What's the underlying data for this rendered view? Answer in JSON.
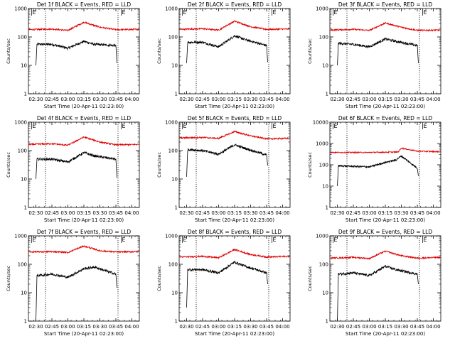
{
  "colors": {
    "events": "#000000",
    "lld": "#e00000",
    "axes": "#000000"
  },
  "chart_data": [
    {
      "type": "line",
      "title": "Det 1f BLACK = Events, RED = LLD",
      "xlabel": "Start Time (20-Apr-11 02:23:00)",
      "ylabel": "Counts/sec",
      "yscale": "log",
      "xlim": [
        "02:23",
        "04:07"
      ],
      "ylim": [
        1,
        1000
      ],
      "ytick_labels": [
        "1",
        "10",
        "100",
        "1000"
      ],
      "xtick_labels": [
        "02:30",
        "02:45",
        "03:00",
        "03:15",
        "03:30",
        "03:45",
        "04:00"
      ],
      "markers": [
        {
          "label": "E",
          "time": "02:26"
        },
        {
          "label": "E",
          "time": "03:50"
        }
      ],
      "vlines": [
        "02:39",
        "03:47"
      ],
      "series": [
        {
          "name": "Events",
          "x": [
            "02:30",
            "02:31",
            "02:45",
            "03:00",
            "03:15",
            "03:25",
            "03:45",
            "03:46"
          ],
          "y": [
            10,
            55,
            55,
            40,
            70,
            55,
            50,
            12
          ]
        },
        {
          "name": "LLD",
          "x": [
            "02:23",
            "02:45",
            "03:00",
            "03:15",
            "03:30",
            "03:45",
            "04:07"
          ],
          "y": [
            180,
            190,
            170,
            330,
            220,
            180,
            185
          ]
        }
      ]
    },
    {
      "type": "line",
      "title": "Det 2f BLACK = Events, RED = LLD",
      "xlabel": "Start Time (20-Apr-11 02:23:00)",
      "ylabel": "Counts/sec",
      "yscale": "log",
      "xlim": [
        "02:23",
        "04:07"
      ],
      "ylim": [
        1,
        1000
      ],
      "ytick_labels": [
        "1",
        "10",
        "100",
        "1000"
      ],
      "xtick_labels": [
        "02:30",
        "02:45",
        "03:00",
        "03:15",
        "03:30",
        "03:45",
        "04:00"
      ],
      "markers": [
        {
          "label": "E",
          "time": "02:26"
        },
        {
          "label": "E",
          "time": "03:50"
        }
      ],
      "vlines": [
        "02:39",
        "03:47"
      ],
      "series": [
        {
          "name": "Events",
          "x": [
            "02:30",
            "02:31",
            "02:45",
            "03:00",
            "03:15",
            "03:25",
            "03:45",
            "03:46"
          ],
          "y": [
            12,
            65,
            65,
            45,
            110,
            80,
            50,
            13
          ]
        },
        {
          "name": "LLD",
          "x": [
            "02:23",
            "02:45",
            "03:00",
            "03:15",
            "03:30",
            "03:45",
            "04:07"
          ],
          "y": [
            185,
            195,
            175,
            360,
            230,
            185,
            190
          ]
        }
      ]
    },
    {
      "type": "line",
      "title": "Det 3f BLACK = Events, RED = LLD",
      "xlabel": "Start Time (20-Apr-11 02:23:00)",
      "ylabel": "Counts/sec",
      "yscale": "log",
      "xlim": [
        "02:23",
        "04:07"
      ],
      "ylim": [
        1,
        1000
      ],
      "ytick_labels": [
        "1",
        "10",
        "100",
        "1000"
      ],
      "xtick_labels": [
        "02:30",
        "02:45",
        "03:00",
        "03:15",
        "03:30",
        "03:45",
        "04:00"
      ],
      "markers": [
        {
          "label": "E",
          "time": "02:26"
        },
        {
          "label": "E",
          "time": "03:50"
        }
      ],
      "vlines": [
        "02:39",
        "03:47"
      ],
      "series": [
        {
          "name": "Events",
          "x": [
            "02:30",
            "02:31",
            "02:45",
            "03:00",
            "03:15",
            "03:25",
            "03:45",
            "03:46"
          ],
          "y": [
            10,
            60,
            55,
            45,
            85,
            70,
            50,
            12
          ]
        },
        {
          "name": "LLD",
          "x": [
            "02:23",
            "02:45",
            "03:00",
            "03:15",
            "03:30",
            "03:45",
            "04:07"
          ],
          "y": [
            175,
            185,
            170,
            310,
            220,
            170,
            175
          ]
        }
      ]
    },
    {
      "type": "line",
      "title": "Det 4f BLACK = Events, RED = LLD",
      "xlabel": "Start Time (20-Apr-11 02:23:00)",
      "ylabel": "Counts/sec",
      "yscale": "log",
      "xlim": [
        "02:23",
        "04:07"
      ],
      "ylim": [
        1,
        1000
      ],
      "ytick_labels": [
        "1",
        "10",
        "100",
        "1000"
      ],
      "xtick_labels": [
        "02:30",
        "02:45",
        "03:00",
        "03:15",
        "03:30",
        "03:45",
        "04:00"
      ],
      "markers": [
        {
          "label": "E",
          "time": "02:26"
        },
        {
          "label": "E",
          "time": "03:50"
        }
      ],
      "vlines": [
        "02:39",
        "03:47"
      ],
      "series": [
        {
          "name": "Events",
          "x": [
            "02:30",
            "02:31",
            "02:45",
            "03:00",
            "03:15",
            "03:25",
            "03:45",
            "03:46"
          ],
          "y": [
            10,
            50,
            50,
            40,
            85,
            65,
            50,
            11
          ]
        },
        {
          "name": "LLD",
          "x": [
            "02:23",
            "02:45",
            "03:00",
            "03:15",
            "03:30",
            "03:45",
            "04:07"
          ],
          "y": [
            165,
            175,
            155,
            300,
            200,
            160,
            165
          ]
        }
      ]
    },
    {
      "type": "line",
      "title": "Det 5f BLACK = Events, RED = LLD",
      "xlabel": "Start Time (20-Apr-11 02:23:00)",
      "ylabel": "Counts/sec",
      "yscale": "log",
      "xlim": [
        "02:23",
        "04:07"
      ],
      "ylim": [
        1,
        1000
      ],
      "ytick_labels": [
        "1",
        "10",
        "100",
        "1000"
      ],
      "xtick_labels": [
        "02:30",
        "02:45",
        "03:00",
        "03:15",
        "03:30",
        "03:45",
        "04:00"
      ],
      "markers": [
        {
          "label": "E",
          "time": "02:26"
        },
        {
          "label": "E",
          "time": "03:50"
        }
      ],
      "vlines": [
        "02:39",
        "03:47"
      ],
      "series": [
        {
          "name": "Events",
          "x": [
            "02:30",
            "02:31",
            "02:45",
            "03:00",
            "03:15",
            "03:25",
            "03:45",
            "03:46"
          ],
          "y": [
            12,
            110,
            100,
            75,
            160,
            120,
            70,
            30
          ]
        },
        {
          "name": "LLD",
          "x": [
            "02:23",
            "02:45",
            "03:00",
            "03:15",
            "03:30",
            "03:45",
            "04:07"
          ],
          "y": [
            280,
            290,
            270,
            470,
            330,
            260,
            270
          ]
        }
      ]
    },
    {
      "type": "line",
      "title": "Det 6f BLACK = Events, RED = LLD",
      "xlabel": "Start Time (20-Apr-11 02:23:00)",
      "ylabel": "Counts/sec",
      "yscale": "log",
      "xlim": [
        "02:23",
        "04:07"
      ],
      "ylim": [
        1,
        10000
      ],
      "ytick_labels": [
        "1",
        "10",
        "100",
        "1000",
        "10000"
      ],
      "xtick_labels": [
        "02:30",
        "02:45",
        "03:00",
        "03:15",
        "03:30",
        "03:45",
        "04:00"
      ],
      "markers": [
        {
          "label": "E",
          "time": "02:26"
        },
        {
          "label": "E",
          "time": "03:50"
        }
      ],
      "vlines": [
        "02:39",
        "03:47"
      ],
      "series": [
        {
          "name": "Events",
          "x": [
            "02:30",
            "02:31",
            "02:45",
            "03:00",
            "03:15",
            "03:25",
            "03:30",
            "03:45",
            "03:46"
          ],
          "y": [
            10,
            90,
            85,
            80,
            130,
            170,
            260,
            70,
            30
          ]
        },
        {
          "name": "LLD",
          "x": [
            "02:23",
            "02:45",
            "03:00",
            "03:15",
            "03:27",
            "03:30",
            "03:45",
            "04:07"
          ],
          "y": [
            380,
            380,
            380,
            390,
            400,
            600,
            440,
            410
          ]
        }
      ]
    },
    {
      "type": "line",
      "title": "Det 7f BLACK = Events, RED = LLD",
      "xlabel": "Start Time (20-Apr-11 02:23:00)",
      "ylabel": "Counts/sec",
      "yscale": "log",
      "xlim": [
        "02:23",
        "04:07"
      ],
      "ylim": [
        1,
        1000
      ],
      "ytick_labels": [
        "1",
        "10",
        "100",
        "1000"
      ],
      "xtick_labels": [
        "02:30",
        "02:45",
        "03:00",
        "03:15",
        "03:30",
        "03:45",
        "04:00"
      ],
      "markers": [
        {
          "label": "E",
          "time": "02:26"
        },
        {
          "label": "E",
          "time": "03:50"
        }
      ],
      "vlines": [
        "02:39",
        "03:47"
      ],
      "series": [
        {
          "name": "Events",
          "x": [
            "02:30",
            "02:31",
            "02:45",
            "03:00",
            "03:15",
            "03:25",
            "03:45",
            "03:46"
          ],
          "y": [
            1,
            40,
            45,
            35,
            70,
            80,
            45,
            15
          ]
        },
        {
          "name": "LLD",
          "x": [
            "02:23",
            "02:45",
            "03:00",
            "03:15",
            "03:30",
            "03:45",
            "04:07"
          ],
          "y": [
            270,
            280,
            260,
            440,
            300,
            270,
            280
          ]
        }
      ]
    },
    {
      "type": "line",
      "title": "Det 8f BLACK = Events, RED = LLD",
      "xlabel": "Start Time (20-Apr-11 02:23:00)",
      "ylabel": "Counts/sec",
      "yscale": "log",
      "xlim": [
        "02:23",
        "04:07"
      ],
      "ylim": [
        1,
        1000
      ],
      "ytick_labels": [
        "1",
        "10",
        "100",
        "1000"
      ],
      "xtick_labels": [
        "02:30",
        "02:45",
        "03:00",
        "03:15",
        "03:30",
        "03:45",
        "04:00"
      ],
      "markers": [
        {
          "label": "E",
          "time": "02:26"
        },
        {
          "label": "E",
          "time": "03:50"
        }
      ],
      "vlines": [
        "02:39",
        "03:47"
      ],
      "series": [
        {
          "name": "Events",
          "x": [
            "02:30",
            "02:31",
            "02:45",
            "03:00",
            "03:15",
            "03:25",
            "03:45",
            "03:46"
          ],
          "y": [
            3,
            65,
            65,
            50,
            120,
            85,
            50,
            20
          ]
        },
        {
          "name": "LLD",
          "x": [
            "02:23",
            "02:45",
            "03:00",
            "03:15",
            "03:30",
            "03:45",
            "04:07"
          ],
          "y": [
            180,
            190,
            170,
            330,
            220,
            180,
            190
          ]
        }
      ]
    },
    {
      "type": "line",
      "title": "Det 9f BLACK = Events, RED = LLD",
      "xlabel": "Start Time (20-Apr-11 02:23:00)",
      "ylabel": "Counts/sec",
      "yscale": "log",
      "xlim": [
        "02:23",
        "04:07"
      ],
      "ylim": [
        1,
        1000
      ],
      "ytick_labels": [
        "1",
        "10",
        "100",
        "1000"
      ],
      "xtick_labels": [
        "02:30",
        "02:45",
        "03:00",
        "03:15",
        "03:30",
        "03:45",
        "04:00"
      ],
      "markers": [
        {
          "label": "E",
          "time": "02:26"
        },
        {
          "label": "E",
          "time": "03:50"
        }
      ],
      "vlines": [
        "02:39",
        "03:47"
      ],
      "series": [
        {
          "name": "Events",
          "x": [
            "02:30",
            "02:31",
            "02:45",
            "03:00",
            "03:15",
            "03:25",
            "03:45",
            "03:46"
          ],
          "y": [
            1,
            45,
            50,
            40,
            85,
            65,
            45,
            20
          ]
        },
        {
          "name": "LLD",
          "x": [
            "02:23",
            "02:45",
            "03:00",
            "03:15",
            "03:30",
            "03:45",
            "04:07"
          ],
          "y": [
            165,
            175,
            160,
            290,
            200,
            165,
            175
          ]
        }
      ]
    }
  ]
}
